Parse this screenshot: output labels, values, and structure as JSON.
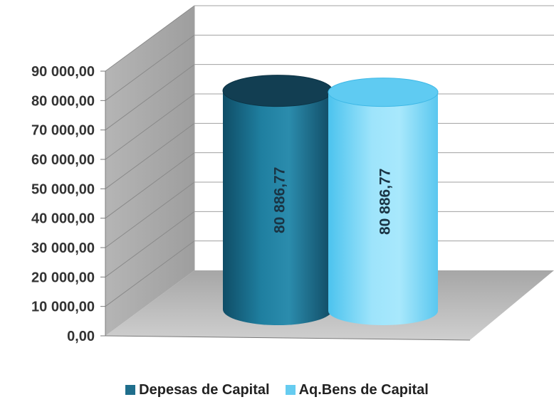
{
  "chart_data": {
    "type": "bar",
    "style": "3d-cylinder",
    "categories": [
      "Depesas de Capital",
      "Aq.Bens de Capital"
    ],
    "values": [
      80886.77,
      80886.77
    ],
    "data_labels": [
      "80 886,77",
      "80 886,77"
    ],
    "title": "",
    "xlabel": "",
    "ylabel": "",
    "ylim": [
      0,
      90000
    ],
    "yticks": [
      0,
      10000,
      20000,
      30000,
      40000,
      50000,
      60000,
      70000,
      80000,
      90000
    ],
    "ytick_labels": [
      "0,00",
      "10 000,00",
      "20 000,00",
      "30 000,00",
      "40 000,00",
      "50 000,00",
      "60 000,00",
      "70 000,00",
      "80 000,00",
      "90 000,00"
    ],
    "grid": true,
    "legend_position": "bottom",
    "legend": [
      {
        "label": "Depesas de Capital",
        "color": "#1f6e8c"
      },
      {
        "label": "Aq.Bens de Capital",
        "color": "#66ccf0"
      }
    ],
    "colors": [
      "#1f6e8c",
      "#66ccf0"
    ]
  }
}
